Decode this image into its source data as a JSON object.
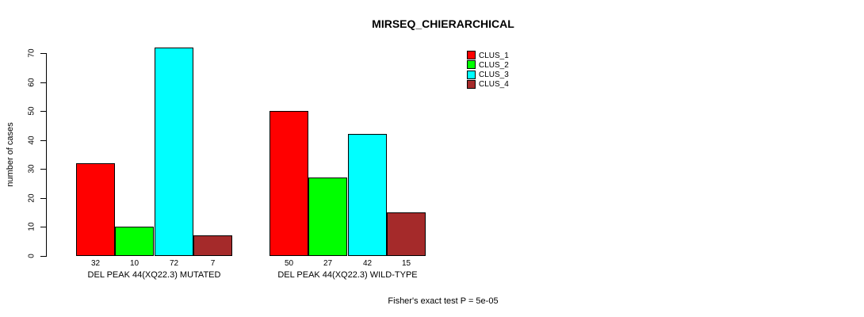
{
  "chart_data": {
    "type": "bar",
    "title": "MIRSEQ_CHIERARCHICAL",
    "xlabel": "",
    "ylabel": "number of cases",
    "ylim": [
      0,
      70
    ],
    "yticks": [
      0,
      10,
      20,
      30,
      40,
      50,
      60,
      70
    ],
    "categories": [
      "DEL PEAK 44(XQ22.3) MUTATED",
      "DEL PEAK 44(XQ22.3) WILD-TYPE"
    ],
    "series": [
      {
        "name": "CLUS_1",
        "color": "#FF0000",
        "values": [
          32,
          50
        ]
      },
      {
        "name": "CLUS_2",
        "color": "#00FF00",
        "values": [
          10,
          27
        ]
      },
      {
        "name": "CLUS_3",
        "color": "#00FFFF",
        "values": [
          72,
          42
        ]
      },
      {
        "name": "CLUS_4",
        "color": "#A52A2A",
        "values": [
          7,
          15
        ]
      }
    ],
    "bar_value_labels": [
      [
        32,
        10,
        72,
        7
      ],
      [
        50,
        27,
        42,
        15
      ]
    ],
    "legend": {
      "position": "top-right",
      "entries": [
        "CLUS_1",
        "CLUS_2",
        "CLUS_3",
        "CLUS_4"
      ]
    },
    "annotation": "Fisher's exact test P = 5e-05",
    "grid": false
  }
}
